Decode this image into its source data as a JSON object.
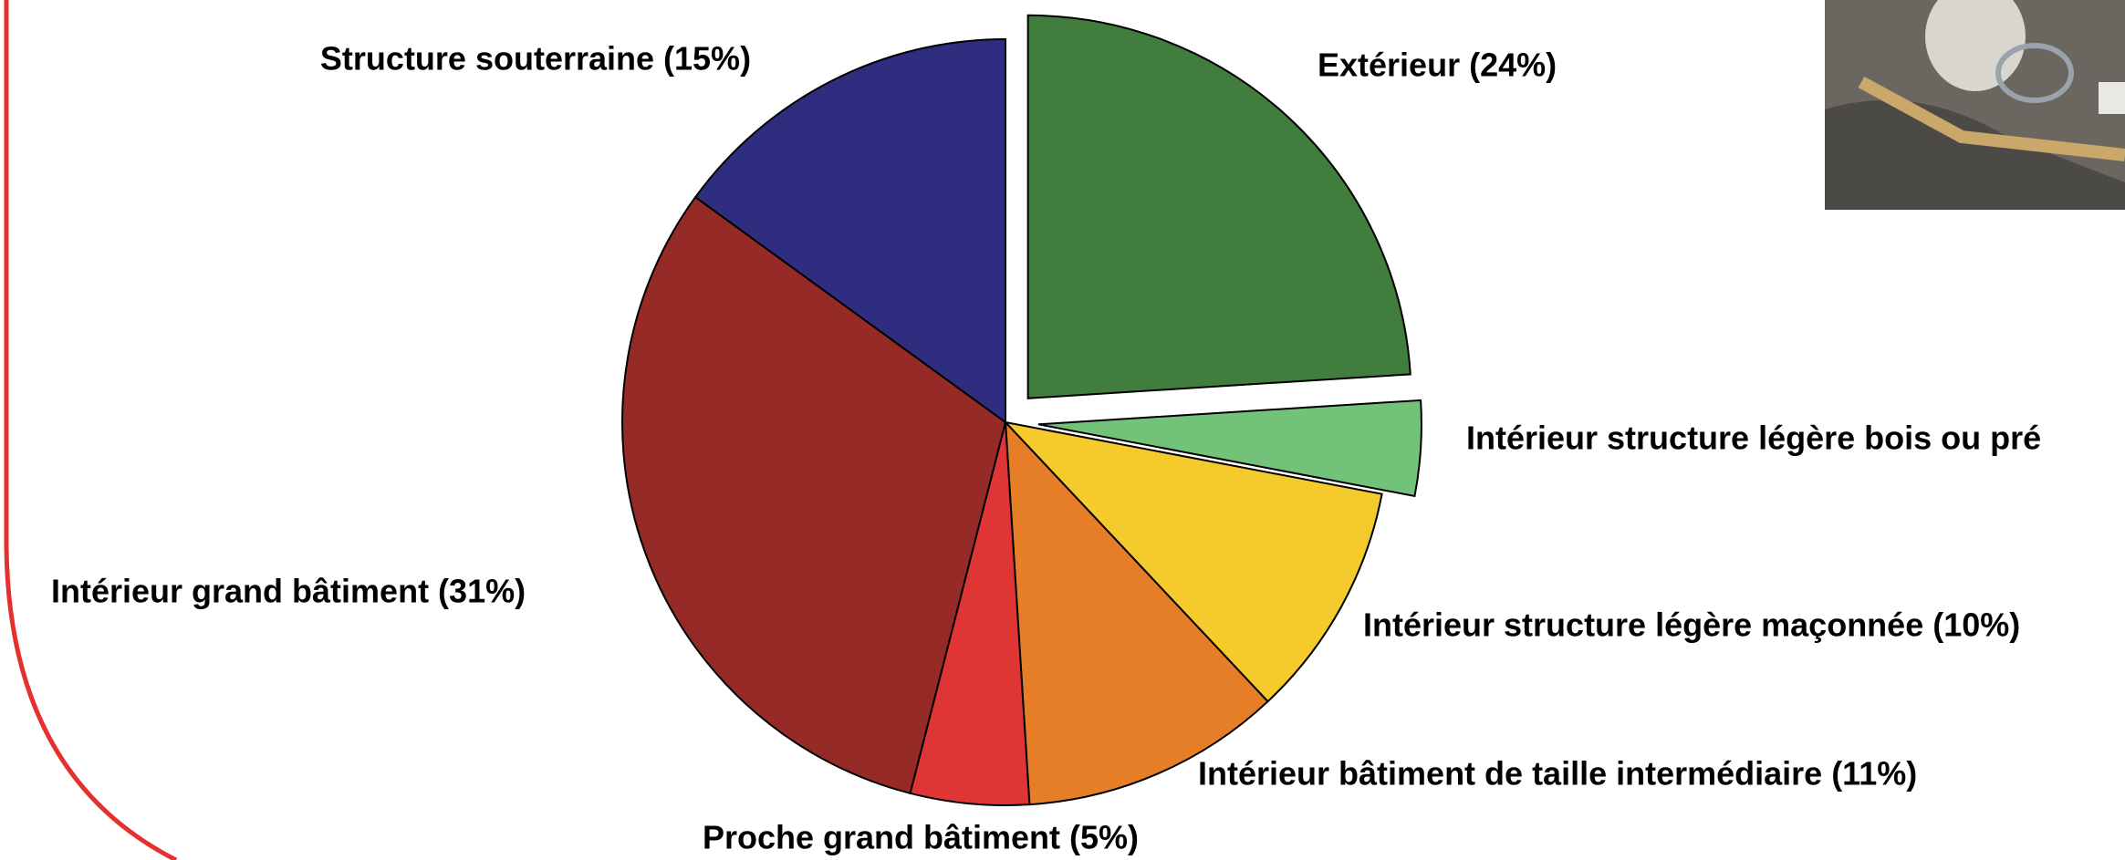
{
  "chart_data": {
    "type": "pie",
    "categories": [
      "Extérieur (24%)",
      "Intérieur structure légère bois ou pré",
      "Intérieur structure légère maçonnée (10%)",
      "Intérieur bâtiment de taille intermédiaire (11%)",
      "Proche grand bâtiment  (5%)",
      "Intérieur grand bâtiment (31%)",
      "Structure souterraine (15%)"
    ],
    "values": [
      24,
      4,
      10,
      11,
      5,
      31,
      15
    ],
    "colors": [
      "#417d3c",
      "#72c27a",
      "#f4ca2d",
      "#e67e27",
      "#e03535",
      "#962a26",
      "#2e2d80"
    ],
    "explode": [
      true,
      true,
      false,
      false,
      false,
      false,
      false
    ]
  }
}
